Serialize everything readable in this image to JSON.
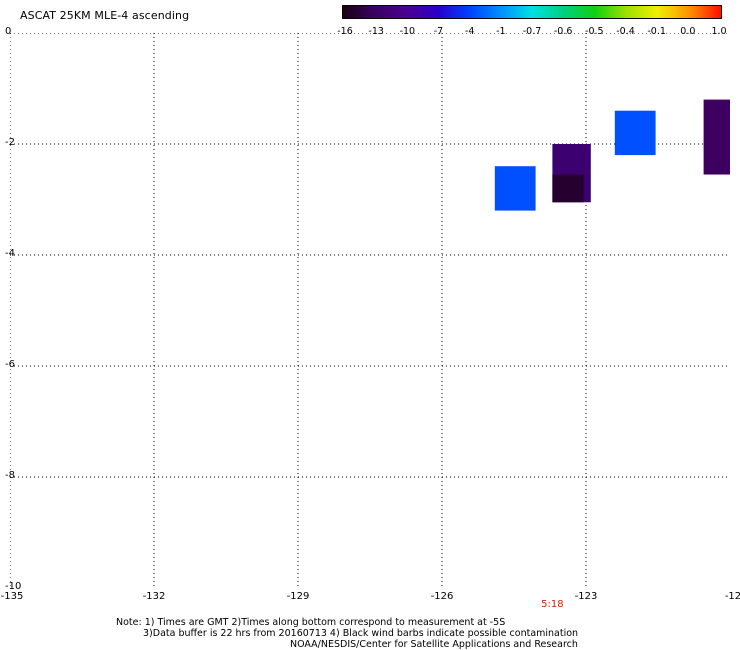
{
  "title": "ASCAT 25KM MLE-4 ascending",
  "colorbar": {
    "labels": [
      "-16",
      "-13",
      "-10",
      "-7",
      "-4",
      "-1",
      "-0.7",
      "-0.6",
      "-0.5",
      "-0.4",
      "-0.1",
      "0.0",
      "1.0"
    ],
    "colors": [
      "#1a0014",
      "#3a0060",
      "#4b0090",
      "#2a00c8",
      "#0040ff",
      "#0090ff",
      "#00e0e0",
      "#00d080",
      "#10d010",
      "#a0e000",
      "#f0f000",
      "#ff9000",
      "#ff1000"
    ]
  },
  "axes": {
    "x_ticks": [
      "-135",
      "-132",
      "-129",
      "-126",
      "-123",
      "-12"
    ],
    "y_ticks": [
      "0",
      "-2",
      "-4",
      "-6",
      "-8",
      "-10"
    ],
    "xlim": [
      -135,
      -120
    ],
    "ylim": [
      -10,
      0
    ],
    "grid": true
  },
  "chart_data": {
    "type": "heatmap",
    "cells": [
      {
        "lon_min": -124.9,
        "lon_max": -124.05,
        "lat_min": -3.2,
        "lat_max": -2.4,
        "value": -4,
        "color": "#0050ff"
      },
      {
        "lon_min": -123.7,
        "lon_max": -122.9,
        "lat_min": -3.05,
        "lat_max": -2.0,
        "value": -13,
        "color": "#3d0070"
      },
      {
        "lon_min": -123.7,
        "lon_max": -123.05,
        "lat_min": -3.05,
        "lat_max": -2.55,
        "value": -16,
        "color": "#26002e"
      },
      {
        "lon_min": -122.4,
        "lon_max": -121.55,
        "lat_min": -2.2,
        "lat_max": -1.4,
        "value": -4,
        "color": "#0050ff"
      },
      {
        "lon_min": -120.55,
        "lon_max": -119.8,
        "lat_min": -2.55,
        "lat_max": -1.2,
        "value": -13,
        "color": "#3d0060"
      }
    ]
  },
  "time_label": "5:18",
  "time_lon": -123.7,
  "notes": {
    "line1": "Note: 1) Times are GMT 2)Times along bottom correspond to measurement at -5S",
    "line2": "3)Data buffer is 22 hrs from 20160713 4) Black wind barbs indicate possible contamination",
    "line3": "NOAA/NESDIS/Center for Satellite Applications and Research"
  }
}
